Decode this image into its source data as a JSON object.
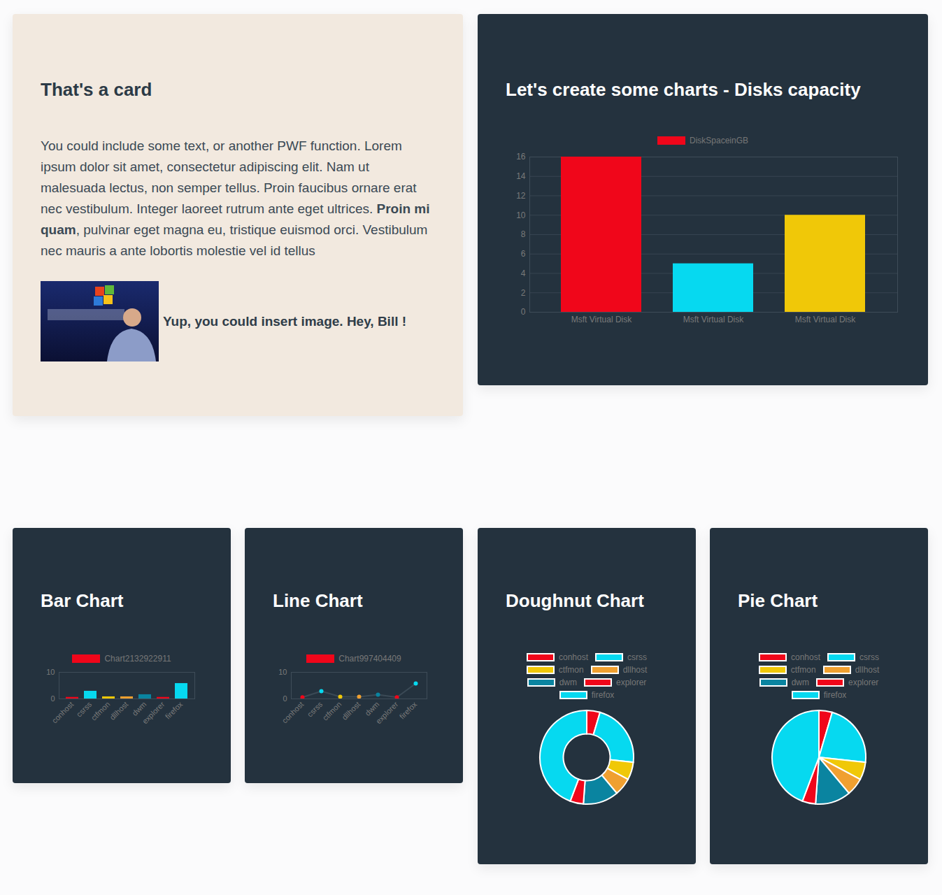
{
  "card": {
    "title": "That's a card",
    "paragraph": {
      "before": "You could include some text, or another PWF function. Lorem ipsum dolor sit amet, consectetur adipiscing elit. Nam ut malesuada lectus, non semper tellus. Proin faucibus ornare erat nec vestibulum. Integer laoreet rutrum ante eget ultrices. ",
      "bold": "Proin mi quam",
      "after": ", pulvinar eget magna eu, tristique euismod orci. Vestibulum nec mauris a ante lobortis molestie vel id tellus"
    },
    "image_caption": "Yup, you could insert image. Hey, Bill !"
  },
  "chart_data": [
    {
      "type": "bar",
      "title": "Let's create some charts - Disks capacity",
      "categories": [
        "Msft Virtual Disk",
        "Msft Virtual Disk",
        "Msft Virtual Disk"
      ],
      "series": [
        {
          "name": "DiskSpaceinGB",
          "colors": [
            "#f0061a",
            "#06d9f0",
            "#f0c808"
          ],
          "values": [
            16,
            5,
            10
          ]
        }
      ],
      "ylim": [
        0,
        16
      ],
      "yticks": [
        0,
        2,
        4,
        6,
        8,
        10,
        12,
        14,
        16
      ],
      "grid": true,
      "legend": "top"
    },
    {
      "type": "bar",
      "title": "Bar Chart",
      "categories": [
        "conhost",
        "csrss",
        "ctfmon",
        "dllhost",
        "dwm",
        "explorer",
        "firefox"
      ],
      "series": [
        {
          "name": "Chart2132922911",
          "colors": [
            "#f0061a",
            "#06d9f0",
            "#f0c808",
            "#f0a030",
            "#0a84a0",
            "#f0061a",
            "#06d9f0"
          ],
          "values": [
            0.6,
            2.9,
            0.8,
            0.8,
            1.6,
            0.6,
            5.8
          ]
        }
      ],
      "ylim": [
        0,
        10
      ],
      "yticks": [
        0,
        10
      ],
      "grid": true,
      "legend": "top"
    },
    {
      "type": "line",
      "title": "Line Chart",
      "categories": [
        "conhost",
        "csrss",
        "ctfmon",
        "dllhost",
        "dwm",
        "explorer",
        "firefox"
      ],
      "series": [
        {
          "name": "Chart997404409",
          "color": "#3b4a56",
          "marker": "circle",
          "colors": [
            "#f0061a",
            "#06d9f0",
            "#f0c808",
            "#f0a030",
            "#0a84a0",
            "#f0061a",
            "#06d9f0"
          ],
          "values": [
            0.6,
            2.9,
            0.8,
            0.8,
            1.6,
            0.6,
            5.8
          ]
        }
      ],
      "ylim": [
        0,
        10
      ],
      "yticks": [
        0,
        10
      ],
      "grid": true,
      "legend": "top"
    },
    {
      "type": "doughnut",
      "title": "Doughnut Chart",
      "categories": [
        "conhost",
        "csrss",
        "ctfmon",
        "dllhost",
        "dwm",
        "explorer",
        "firefox"
      ],
      "values": [
        0.6,
        2.9,
        0.8,
        0.8,
        1.6,
        0.6,
        5.8
      ],
      "colors": [
        "#f0061a",
        "#06d9f0",
        "#f0c808",
        "#f0a030",
        "#0a84a0",
        "#f0061a",
        "#06d9f0"
      ],
      "legend": "top"
    },
    {
      "type": "pie",
      "title": "Pie Chart",
      "categories": [
        "conhost",
        "csrss",
        "ctfmon",
        "dllhost",
        "dwm",
        "explorer",
        "firefox"
      ],
      "values": [
        0.6,
        2.9,
        0.8,
        0.8,
        1.6,
        0.6,
        5.8
      ],
      "colors": [
        "#f0061a",
        "#06d9f0",
        "#f0c808",
        "#f0a030",
        "#0a84a0",
        "#f0061a",
        "#06d9f0"
      ],
      "legend": "top"
    }
  ]
}
